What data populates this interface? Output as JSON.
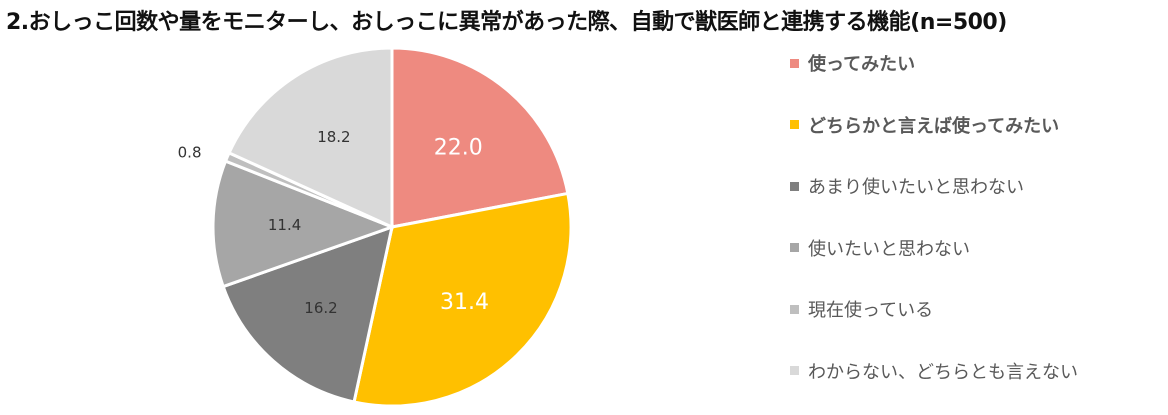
{
  "chart_data": {
    "type": "pie",
    "title": "2.おしっこ回数や量をモニターし、おしっこに異常があった際、自動で獣医師と連携する機能(n=500)",
    "start_angle_deg": 0,
    "direction": "clockwise",
    "slices": [
      {
        "label": "使ってみたい",
        "value": 22.0,
        "value_label": "22.0",
        "color": "#EE8A80",
        "label_color": "#ffffff",
        "legend_bold": true
      },
      {
        "label": "どちらかと言えば使ってみたい",
        "value": 31.4,
        "value_label": "31.4",
        "color": "#FFC000",
        "label_color": "#ffffff",
        "legend_bold": true
      },
      {
        "label": "あまり使いたいと思わない",
        "value": 16.2,
        "value_label": "16.2",
        "color": "#7F7F7F",
        "label_color": "#333333",
        "legend_bold": false
      },
      {
        "label": "使いたいと思わない",
        "value": 11.4,
        "value_label": "11.4",
        "color": "#A6A6A6",
        "label_color": "#333333",
        "legend_bold": false
      },
      {
        "label": "現在使っている",
        "value": 0.8,
        "value_label": "0.8",
        "color": "#BFBFBF",
        "label_color": "#333333",
        "legend_bold": false
      },
      {
        "label": "わからない、どちらとも言えない",
        "value": 18.2,
        "value_label": "18.2",
        "color": "#D9D9D9",
        "label_color": "#333333",
        "legend_bold": false
      }
    ],
    "legend_position": "right"
  }
}
